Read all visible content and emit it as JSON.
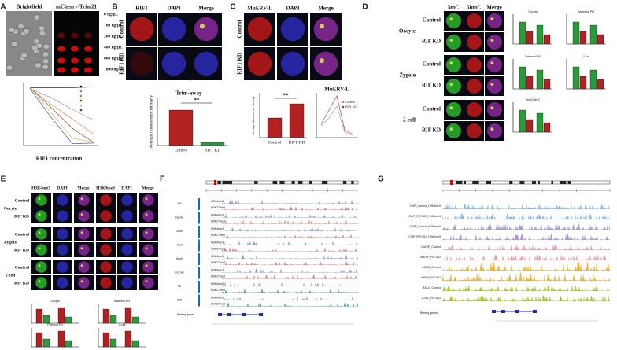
{
  "panels": [
    {
      "label": "A",
      "columns": [
        "Brightfield",
        "mCherry-Trim21"
      ],
      "concentrations": [
        "0 ng/µL",
        "100 ng/µL",
        "200 ng/µL",
        "400 ng/µL",
        "600 ng/µL",
        "1000 ng/µL"
      ],
      "x_axis_label": "RIF1 concentration"
    },
    {
      "label": "B",
      "columns": [
        "RIF1",
        "DAPI",
        "Merge"
      ],
      "rows": [
        "Control",
        "RIF1 KD"
      ],
      "chart_title": "Trim-away",
      "y_axis_label": "Average fluorescence intensity",
      "categories": [
        "Control",
        "RIF1 KD"
      ],
      "significance": "**"
    },
    {
      "label": "C",
      "columns": [
        "MuERV-L",
        "DAPI",
        "Merge"
      ],
      "rows": [
        "Control",
        "RIF1 KD"
      ],
      "y_axis_label": "Average fluorescence intensity",
      "categories": [
        "Control",
        "RIF1 KD"
      ],
      "significance": "**",
      "line_chart_title": "MuERV-L",
      "legend": [
        "Control",
        "RIF1 KD"
      ]
    },
    {
      "label": "D",
      "columns": [
        "5mC",
        "5hmC",
        "Merge"
      ],
      "stages": [
        "Oocyte",
        "Zygote",
        "2-cell"
      ],
      "rows": [
        "Control",
        "RIF KD"
      ],
      "chart_titles": [
        "Oocyte",
        "Maternal PN",
        "Paternal PN",
        "2-cell",
        "5hmC/5mC"
      ]
    },
    {
      "label": "E",
      "columns": [
        "H3K4me3",
        "DAPI",
        "Merge",
        "H3K9me3",
        "DAPI",
        "Merge"
      ],
      "stages": [
        "Oocyte",
        "Zygote",
        "2-cell"
      ],
      "rows": [
        "Control",
        "RIF KD"
      ],
      "chart_titles": [
        "Oocyte",
        "Maternal PN",
        "Paternal PN",
        "2-cell"
      ]
    },
    {
      "label": "F",
      "groups": [
        "MII",
        "zygote",
        "2cell",
        "4cell",
        "8cell",
        "morula",
        "TE",
        "ICM"
      ],
      "marks": [
        "H3K4me3",
        "H3K27me3"
      ],
      "gene_track": "Refseq genes"
    },
    {
      "label": "G",
      "tracks": [
        "ChIP_Control_H3K4me3",
        "ChIP_RIF1KD_H3K4me3",
        "ChIP_Control_H3K9me3",
        "ChIP_RIF1KD_H3K9me3",
        "MeDIP_Control",
        "MeDIP_RIF1KD",
        "mRNA_Control",
        "mRNA_RIF1KD",
        "ATAC_Control",
        "ATAC_RIF1KD"
      ],
      "gene_track": "Refseq genes"
    }
  ]
}
